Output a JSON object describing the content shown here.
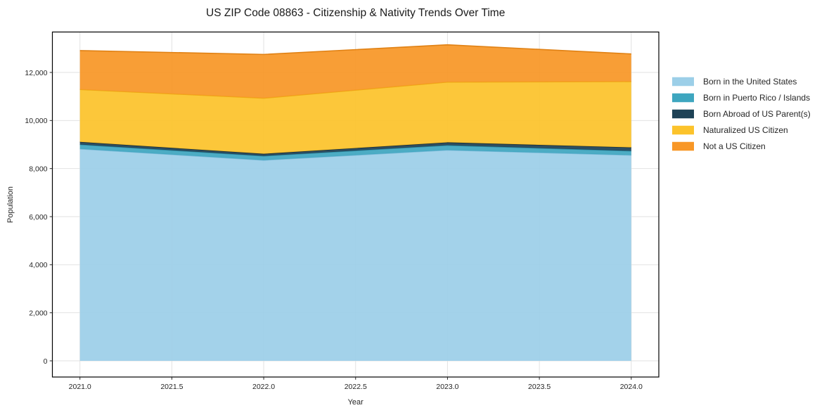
{
  "title": "US ZIP Code 08863 - Citizenship & Nativity Trends Over Time",
  "chart_data": {
    "type": "area",
    "stacked": true,
    "title": "US ZIP Code 08863 - Citizenship & Nativity Trends Over Time",
    "xlabel": "Year",
    "ylabel": "Population",
    "x": [
      2021,
      2022,
      2023,
      2024
    ],
    "series": [
      {
        "name": "Born in the United States",
        "color": "#9ccfe8",
        "edge_color": "#7cbbd9",
        "values": [
          8820,
          8350,
          8770,
          8560
        ]
      },
      {
        "name": "Born in Puerto Rico / Islands",
        "color": "#3ea6bf",
        "edge_color": "#2e8ea6",
        "values": [
          180,
          175,
          200,
          175
        ]
      },
      {
        "name": "Born Abroad of US Parent(s)",
        "color": "#1e4256",
        "edge_color": "#142c3b",
        "values": [
          110,
          90,
          120,
          145
        ]
      },
      {
        "name": "Naturalized US Citizen",
        "color": "#fcc32b",
        "edge_color": "#edab14",
        "values": [
          2180,
          2315,
          2510,
          2740
        ]
      },
      {
        "name": "Not a US Citizen",
        "color": "#f89727",
        "edge_color": "#e08114",
        "values": [
          1620,
          1820,
          1550,
          1150
        ]
      }
    ],
    "stacked_totals": [
      12910,
      12750,
      13150,
      12770
    ],
    "xlim": [
      2020.85,
      2024.15
    ],
    "ylim": [
      -673,
      13683
    ],
    "x_ticks": {
      "values": [
        2021.0,
        2021.5,
        2022.0,
        2022.5,
        2023.0,
        2023.5,
        2024.0
      ],
      "labels": [
        "2021.0",
        "2021.5",
        "2022.0",
        "2022.5",
        "2023.0",
        "2023.5",
        "2024.0"
      ]
    },
    "y_ticks": {
      "values": [
        0,
        2000,
        4000,
        6000,
        8000,
        10000,
        12000
      ],
      "labels": [
        "0",
        "2,000",
        "4,000",
        "6,000",
        "8,000",
        "10,000",
        "12,000"
      ]
    },
    "grid": true,
    "legend_position": "right-outside"
  },
  "colors": {
    "background": "#ffffff",
    "grid": "#e2e2e2",
    "spine": "#000000",
    "text": "#262626"
  }
}
